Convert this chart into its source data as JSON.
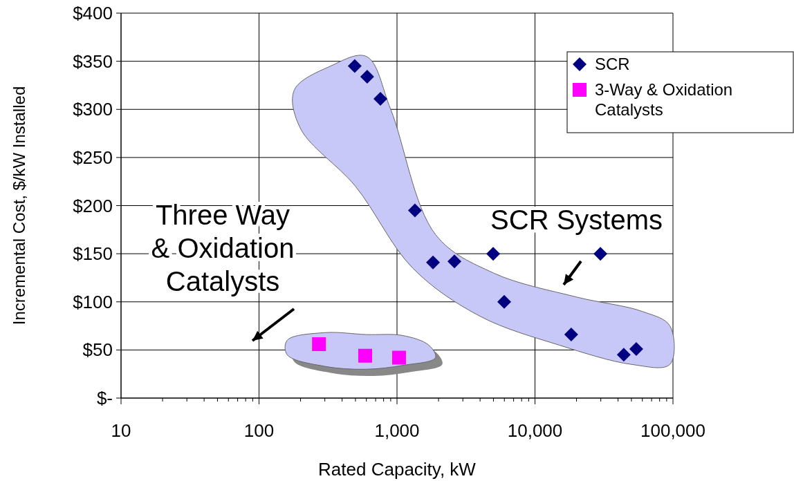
{
  "chart_data": {
    "type": "scatter",
    "xlabel": "Rated Capacity, kW",
    "ylabel": "Incremental Cost, $/kW Installed",
    "log": "x",
    "xlim": [
      10,
      100000
    ],
    "xticks": [
      10,
      100,
      {
        "value": 1000,
        "label": "1,000"
      },
      {
        "value": 10000,
        "label": "10,000"
      },
      {
        "value": 100000,
        "label": "100,000"
      }
    ],
    "ylim": [
      0,
      400
    ],
    "yticks": [
      {
        "value": 0,
        "label": "$-"
      },
      {
        "value": 50,
        "label": "$50"
      },
      {
        "value": 100,
        "label": "$100"
      },
      {
        "value": 150,
        "label": "$150"
      },
      {
        "value": 200,
        "label": "$200"
      },
      {
        "value": 250,
        "label": "$250"
      },
      {
        "value": 300,
        "label": "$300"
      },
      {
        "value": 350,
        "label": "$350"
      },
      {
        "value": 400,
        "label": "$400"
      }
    ],
    "grid": true,
    "legend": "top right",
    "series": [
      {
        "name": "SCR",
        "color": "#000080",
        "marker": "diamond",
        "x": [
          494,
          608,
          758,
          1349,
          1824,
          2606,
          4977,
          5985,
          18300,
          29800,
          44000,
          54200
        ],
        "values": [
          345,
          334,
          311,
          195,
          141,
          142,
          150,
          100,
          66,
          150,
          45,
          51
        ]
      },
      {
        "name": "3-Way & Oxidation Catalysts",
        "color": "#ff00ff",
        "marker": "square",
        "x": [
          272,
          588,
          1035
        ],
        "values": [
          56,
          44,
          42
        ]
      }
    ],
    "annotations": [
      "Three Way\n& Oxidation\nCatalysts",
      "SCR Systems"
    ]
  }
}
